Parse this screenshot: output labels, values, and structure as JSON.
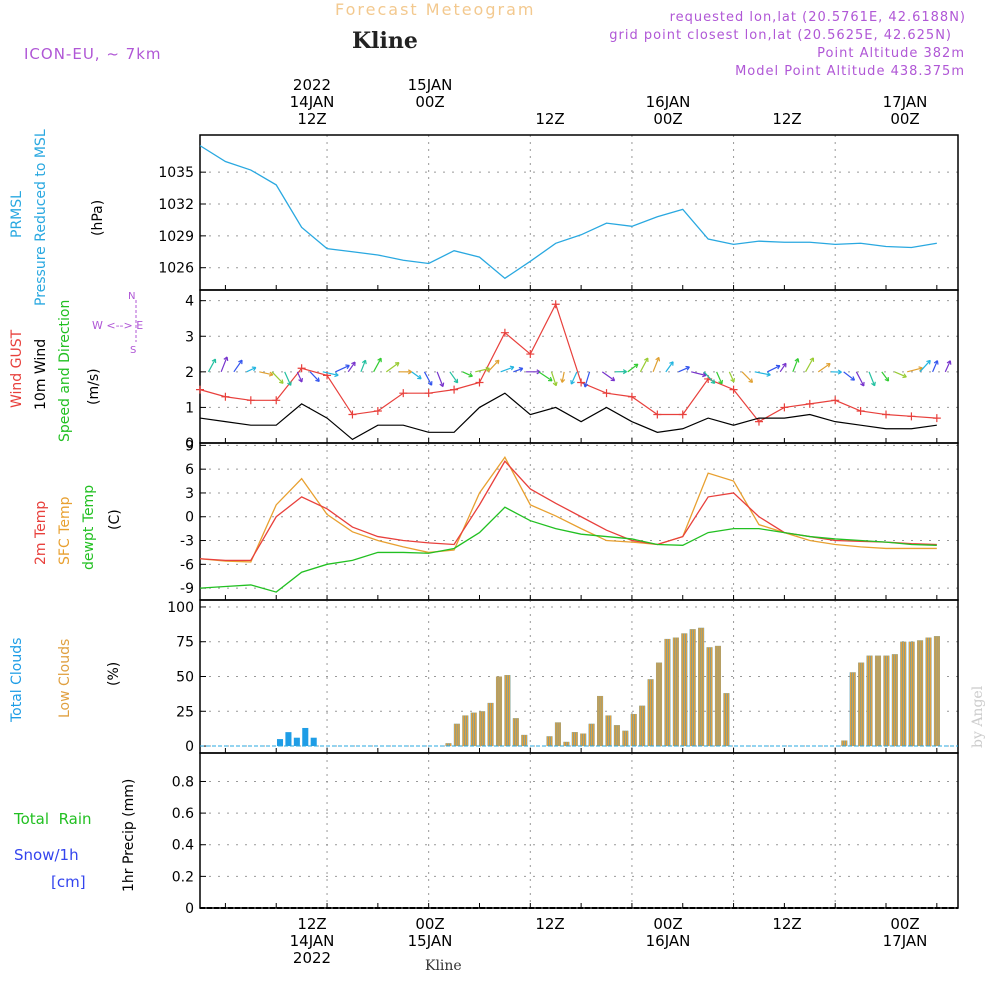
{
  "header": {
    "title": "Forecast Meteogram",
    "place": "Kline",
    "model": "ICON-EU, ~ 7km",
    "requested": "requested lon,lat (20.5761E, 42.6188N)",
    "grid_point": "grid point closest lon,lat (20.5625E, 42.625N)",
    "point_alt": "Point Altitude 382m",
    "model_alt": "Model Point Altitude 438.375m"
  },
  "time_axis": {
    "top_labels": [
      {
        "line1": "2022",
        "line2": "14JAN",
        "line3": "12Z"
      },
      {
        "line1": "",
        "line2": "15JAN",
        "line3": "00Z"
      },
      {
        "line1": "",
        "line2": "",
        "line3": "12Z"
      },
      {
        "line1": "",
        "line2": "16JAN",
        "line3": "00Z"
      },
      {
        "line1": "",
        "line2": "",
        "line3": "12Z"
      },
      {
        "line1": "",
        "line2": "17JAN",
        "line3": "00Z"
      }
    ],
    "bottom_labels": [
      {
        "line1": "12Z",
        "line2": "14JAN",
        "line3": "2022"
      },
      {
        "line1": "00Z",
        "line2": "15JAN",
        "line3": ""
      },
      {
        "line1": "12Z",
        "line2": "",
        "line3": ""
      },
      {
        "line1": "00Z",
        "line2": "16JAN",
        "line3": ""
      },
      {
        "line1": "12Z",
        "line2": "",
        "line3": ""
      },
      {
        "line1": "00Z",
        "line2": "17JAN",
        "line3": ""
      }
    ]
  },
  "panel_labels": {
    "pressure": {
      "line1": "PRMSL",
      "line2": "Pressure Reduced to MSL",
      "unit": "(hPa)"
    },
    "wind": {
      "gust": "Wind GUST",
      "wind10": "10m Wind",
      "dir": "Speed and Direction",
      "unit": "(m/s)",
      "compass_we": "W <--> E",
      "compass_n": "N",
      "compass_s": "S"
    },
    "temp": {
      "t2m": "2m Temp",
      "sfc": "SFC Temp",
      "dew": "dewpt Temp",
      "unit": "(C)"
    },
    "clouds": {
      "total": "Total Clouds",
      "low": "Low Clouds",
      "unit": "(%)"
    },
    "precip": {
      "rain": "Total  Rain",
      "snow": "Snow/1h",
      "snow_unit": "[cm]",
      "axis": "1hr Precip (mm)"
    }
  },
  "credit": "by Angel",
  "footer": "Kline",
  "colors": {
    "pressure": "#29a8e0",
    "gust": "#e8403c",
    "wind10": "#000000",
    "t2m": "#e8403c",
    "sfc": "#e8a030",
    "dew": "#22c022",
    "total_clouds": "#1e9de6",
    "low_clouds": "#e0a040",
    "rain_label": "#22c022",
    "snow_label": "#3344ee"
  },
  "chart_data": [
    {
      "type": "line",
      "name": "pressure",
      "ylabel": "(hPa)",
      "ylim": [
        1023.9,
        1038.5
      ],
      "yticks": [
        1026,
        1029,
        1032,
        1035
      ],
      "x_hours": [
        0,
        3,
        6,
        9,
        12,
        15,
        18,
        21,
        24,
        27,
        30,
        33,
        36,
        39,
        42,
        45,
        48,
        51,
        54,
        57,
        60,
        63,
        66,
        69,
        72,
        75,
        78,
        81,
        84,
        87
      ],
      "series": [
        {
          "values": [
            1037.5,
            1036.0,
            1035.2,
            1033.8,
            1029.8,
            1027.8,
            1027.5,
            1027.2,
            1026.7,
            1026.4,
            1027.6,
            1027.0,
            1025.0,
            1026.6,
            1028.3,
            1029.1,
            1030.2,
            1029.9,
            1030.8,
            1031.5,
            1028.7,
            1028.2,
            1028.5,
            1028.4,
            1028.4,
            1028.2,
            1028.3,
            1028.0,
            1027.9,
            1028.3
          ]
        }
      ]
    },
    {
      "type": "line",
      "name": "wind",
      "ylabel": "(m/s)",
      "ylim": [
        0,
        4.3
      ],
      "yticks": [
        0,
        1,
        2,
        3,
        4
      ],
      "x_hours": [
        0,
        3,
        6,
        9,
        12,
        15,
        18,
        21,
        24,
        27,
        30,
        33,
        36,
        39,
        42,
        45,
        48,
        51,
        54,
        57,
        60,
        63,
        66,
        69,
        72,
        75,
        78,
        81,
        84,
        87
      ],
      "series": [
        {
          "name": "Wind GUST",
          "values": [
            1.5,
            1.3,
            1.2,
            1.2,
            2.1,
            1.9,
            0.8,
            0.9,
            1.4,
            1.4,
            1.5,
            1.7,
            3.1,
            2.5,
            3.9,
            1.7,
            1.4,
            1.3,
            0.8,
            0.8,
            1.8,
            1.5,
            0.6,
            1.0,
            1.1,
            1.2,
            0.9,
            0.8,
            0.75,
            0.7
          ]
        },
        {
          "name": "10m Wind",
          "values": [
            0.7,
            0.6,
            0.5,
            0.5,
            1.1,
            0.7,
            0.1,
            0.5,
            0.5,
            0.3,
            0.3,
            1.0,
            1.4,
            0.8,
            1.0,
            0.6,
            1.0,
            0.6,
            0.3,
            0.4,
            0.7,
            0.5,
            0.7,
            0.7,
            0.8,
            0.6,
            0.5,
            0.4,
            0.4,
            0.5
          ]
        }
      ]
    },
    {
      "type": "line",
      "name": "temperature",
      "ylabel": "(C)",
      "ylim": [
        -10.5,
        9.3
      ],
      "yticks": [
        -9,
        -6,
        -3,
        0,
        3,
        6,
        9
      ],
      "x_hours": [
        0,
        3,
        6,
        9,
        12,
        15,
        18,
        21,
        24,
        27,
        30,
        33,
        36,
        39,
        42,
        45,
        48,
        51,
        54,
        57,
        60,
        63,
        66,
        69,
        72,
        75,
        78,
        81,
        84,
        87
      ],
      "series": [
        {
          "name": "2m Temp",
          "values": [
            -5.3,
            -5.5,
            -5.5,
            0.0,
            2.5,
            1.0,
            -1.3,
            -2.5,
            -3.0,
            -3.3,
            -3.5,
            1.5,
            7.0,
            3.5,
            1.7,
            0.0,
            -1.7,
            -3.0,
            -3.5,
            -2.5,
            2.5,
            3.0,
            0.0,
            -2.0,
            -2.5,
            -3.0,
            -3.1,
            -3.2,
            -3.4,
            -3.5
          ]
        },
        {
          "name": "SFC Temp",
          "values": [
            -5.3,
            -5.6,
            -5.7,
            1.5,
            4.8,
            0.3,
            -1.9,
            -3.0,
            -3.8,
            -4.5,
            -4.2,
            3.0,
            7.5,
            1.5,
            0.1,
            -1.5,
            -3.0,
            -3.2,
            -3.5,
            -2.5,
            5.5,
            4.5,
            -1.0,
            -2.0,
            -3.0,
            -3.5,
            -3.8,
            -4.0,
            -4.0,
            -4.0
          ]
        },
        {
          "name": "dewpt Temp",
          "values": [
            -9.0,
            -8.8,
            -8.6,
            -9.5,
            -7.0,
            -6.0,
            -5.5,
            -4.5,
            -4.5,
            -4.6,
            -4.0,
            -2.0,
            1.2,
            -0.5,
            -1.5,
            -2.2,
            -2.5,
            -2.8,
            -3.5,
            -3.6,
            -2.0,
            -1.5,
            -1.5,
            -2.0,
            -2.5,
            -2.8,
            -3.0,
            -3.2,
            -3.5,
            -3.6
          ]
        }
      ]
    },
    {
      "type": "bar",
      "name": "clouds",
      "ylabel": "(%)",
      "ylim": [
        -5,
        105
      ],
      "yticks": [
        0,
        25,
        50,
        75,
        100
      ],
      "x_hours": [
        0,
        1,
        2,
        3,
        4,
        5,
        6,
        7,
        8,
        9,
        10,
        11,
        12,
        13,
        14,
        15,
        16,
        17,
        18,
        19,
        20,
        21,
        22,
        23,
        24,
        25,
        26,
        27,
        28,
        29,
        30,
        31,
        32,
        33,
        34,
        35,
        36,
        37,
        38,
        39,
        40,
        41,
        42,
        43,
        44,
        45,
        46,
        47,
        48,
        49,
        50,
        51,
        52,
        53,
        54,
        55,
        56,
        57,
        58,
        59,
        60,
        61,
        62,
        63,
        64,
        65,
        66,
        67,
        68,
        69,
        70,
        71,
        72,
        73,
        74,
        75,
        76,
        77,
        78,
        79,
        80,
        81,
        82,
        83,
        84,
        85,
        86,
        87,
        88,
        89
      ],
      "series": [
        {
          "name": "Total Clouds",
          "values": [
            0,
            0,
            0,
            0,
            0,
            0,
            0,
            0,
            0,
            5,
            10,
            6,
            13,
            6,
            0,
            0,
            0,
            0,
            0,
            0,
            0,
            0,
            0,
            0,
            0,
            0,
            0,
            0,
            0,
            2,
            16,
            22,
            24,
            25,
            31,
            50,
            51,
            20,
            8,
            0,
            0,
            7,
            17,
            3,
            10,
            9,
            16,
            36,
            22,
            15,
            11,
            23,
            29,
            48,
            60,
            77,
            78,
            81,
            84,
            85,
            71,
            72,
            38,
            0,
            0,
            0,
            0,
            0,
            0,
            0,
            0,
            0,
            0,
            0,
            0,
            0,
            4,
            53,
            60,
            65,
            65,
            65,
            66,
            75,
            75,
            76,
            78,
            79,
            0,
            0
          ]
        },
        {
          "name": "Low Clouds",
          "values": [
            0,
            0,
            0,
            0,
            0,
            0,
            0,
            0,
            0,
            0,
            0,
            0,
            0,
            0,
            0,
            0,
            0,
            0,
            0,
            0,
            0,
            0,
            0,
            0,
            0,
            0,
            0,
            0,
            0,
            2,
            16,
            22,
            24,
            25,
            31,
            50,
            51,
            20,
            8,
            0,
            0,
            7,
            17,
            3,
            10,
            9,
            16,
            36,
            22,
            15,
            11,
            23,
            29,
            48,
            60,
            77,
            78,
            81,
            84,
            85,
            71,
            72,
            38,
            0,
            0,
            0,
            0,
            0,
            0,
            0,
            0,
            0,
            0,
            0,
            0,
            0,
            4,
            53,
            60,
            65,
            65,
            65,
            66,
            75,
            75,
            76,
            78,
            79,
            0,
            0
          ]
        }
      ]
    },
    {
      "type": "line",
      "name": "precip",
      "ylabel": "1hr Precip (mm)",
      "ylim": [
        0,
        0.98
      ],
      "yticks": [
        0,
        0.2,
        0.4,
        0.6,
        0.8
      ],
      "x_hours": [
        0,
        87
      ],
      "series": [
        {
          "name": "Total Rain",
          "values": [
            0,
            0
          ]
        }
      ]
    }
  ]
}
